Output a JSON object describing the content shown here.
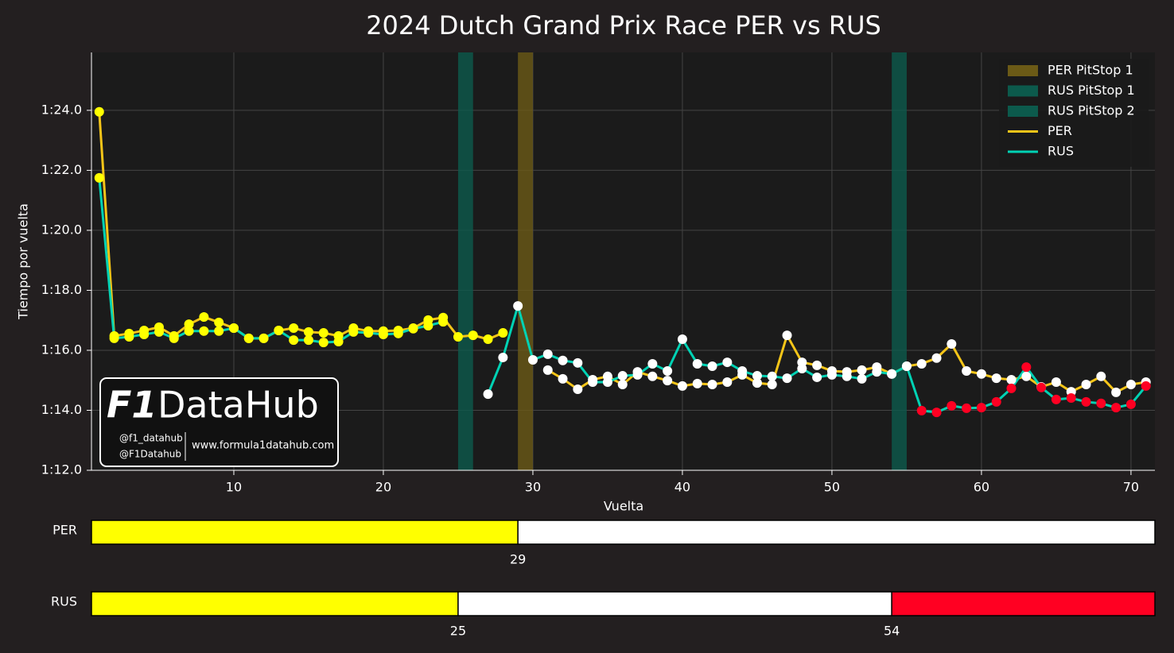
{
  "chart_data": {
    "type": "line",
    "title": "2024 Dutch Grand Prix Race PER vs RUS",
    "x_label": "Vuelta",
    "y_label": "Tiempo por vuelta",
    "x": [
      1,
      2,
      3,
      4,
      5,
      6,
      7,
      8,
      9,
      10,
      11,
      12,
      13,
      14,
      15,
      16,
      17,
      18,
      19,
      20,
      21,
      22,
      23,
      24,
      25,
      26,
      27,
      28,
      29,
      30,
      31,
      32,
      33,
      34,
      35,
      36,
      37,
      38,
      39,
      40,
      41,
      42,
      43,
      44,
      45,
      46,
      47,
      48,
      49,
      50,
      51,
      52,
      53,
      54,
      55,
      56,
      57,
      58,
      59,
      60,
      61,
      62,
      63,
      64,
      65,
      66,
      67,
      68,
      69,
      70,
      71
    ],
    "series": [
      {
        "name": "PER",
        "color": "#f5c518",
        "values": [
          83.95,
          76.48,
          76.56,
          76.66,
          76.77,
          76.48,
          76.87,
          77.11,
          76.93,
          76.74,
          76.4,
          76.4,
          76.66,
          76.74,
          76.61,
          76.58,
          76.48,
          76.74,
          76.64,
          76.64,
          76.66,
          76.74,
          77.01,
          77.09,
          76.45,
          76.5,
          76.37,
          76.58,
          null,
          null,
          75.34,
          75.05,
          74.7,
          75.02,
          75.13,
          74.86,
          75.28,
          75.13,
          74.99,
          74.81,
          74.89,
          74.86,
          74.94,
          75.18,
          74.91,
          74.86,
          76.5,
          75.6,
          75.5,
          75.31,
          75.28,
          75.34,
          75.44,
          75.21,
          75.47,
          75.55,
          75.74,
          76.21,
          75.31,
          75.21,
          75.07,
          75.02,
          75.13,
          74.78,
          74.94,
          74.62,
          74.86,
          75.13,
          74.6,
          74.86,
          74.94
        ]
      },
      {
        "name": "RUS",
        "color": "#00d2b4",
        "values": [
          81.75,
          76.4,
          76.45,
          76.53,
          76.61,
          76.4,
          76.64,
          76.64,
          76.64,
          76.74,
          76.4,
          76.4,
          76.66,
          76.34,
          76.34,
          76.26,
          76.29,
          76.61,
          76.58,
          76.53,
          76.56,
          76.72,
          76.82,
          76.95,
          null,
          null,
          74.54,
          75.76,
          77.48,
          75.68,
          75.87,
          75.66,
          75.58,
          74.94,
          74.94,
          75.15,
          75.18,
          75.55,
          75.31,
          76.37,
          75.55,
          75.47,
          75.6,
          75.31,
          75.15,
          75.13,
          75.07,
          75.39,
          75.1,
          75.18,
          75.13,
          75.05,
          75.28,
          75.21,
          75.47,
          73.99,
          73.93,
          74.15,
          74.07,
          74.09,
          74.28,
          74.73,
          75.44,
          74.76,
          74.36,
          74.41,
          74.28,
          74.23,
          74.09,
          74.2,
          74.81
        ]
      }
    ],
    "pit_stops": [
      {
        "name": "PER PitStop 1",
        "lap": 29,
        "color": "#6b5a16"
      },
      {
        "name": "RUS PitStop 1",
        "lap": 25,
        "color": "#0c5a4c"
      },
      {
        "name": "RUS PitStop 2",
        "lap": 54,
        "color": "#0c5a4c"
      }
    ],
    "stints": [
      {
        "name": "PER",
        "boundaries": [
          29
        ],
        "colors": [
          "#ffff00",
          "#ffffff"
        ]
      },
      {
        "name": "RUS",
        "boundaries": [
          25,
          54
        ],
        "colors": [
          "#ffff00",
          "#ffffff",
          "#ff0022"
        ]
      }
    ],
    "xlim": [
      0.48,
      71.6
    ],
    "xticks": [
      10,
      20,
      30,
      40,
      50,
      60,
      70
    ],
    "ylim": [
      72,
      85.93
    ],
    "yticks": [
      {
        "value": 72,
        "label": "1:12.0"
      },
      {
        "value": 74,
        "label": "1:14.0"
      },
      {
        "value": 76,
        "label": "1:16.0"
      },
      {
        "value": 78,
        "label": "1:18.0"
      },
      {
        "value": 80,
        "label": "1:20.0"
      },
      {
        "value": 82,
        "label": "1:22.0"
      },
      {
        "value": 84,
        "label": "1:24.0"
      }
    ],
    "grid": true,
    "legend": "upper right"
  },
  "watermark": {
    "brand_f1": "F1",
    "brand_rest": "DataHub",
    "instagram": "@f1_datahub",
    "x_handle": "@F1Datahub",
    "website": "www.formula1datahub.com"
  }
}
